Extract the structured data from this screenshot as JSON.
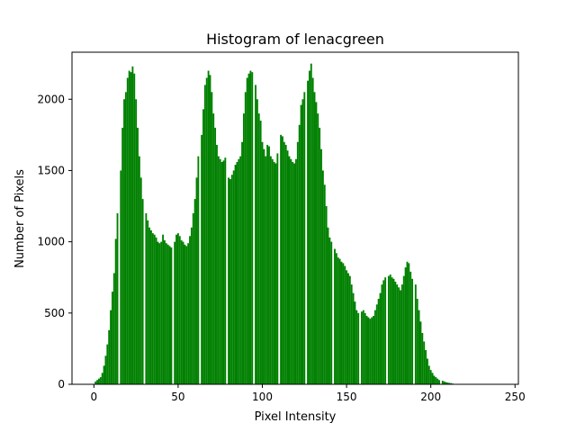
{
  "chart_data": {
    "type": "bar",
    "title": "Histogram of lenacgreen",
    "xlabel": "Pixel Intensity",
    "ylabel": "Number of Pixels",
    "xlim": [
      -13,
      252
    ],
    "ylim": [
      0,
      2330
    ],
    "xticks": [
      0,
      50,
      100,
      150,
      200,
      250
    ],
    "yticks": [
      0,
      500,
      1000,
      1500,
      2000
    ],
    "bar_color": "#008000",
    "grid": false,
    "series": [
      {
        "x_start": 0,
        "values": [
          3,
          20,
          30,
          40,
          50,
          80,
          130,
          200,
          280,
          380,
          520,
          650,
          780,
          1020,
          1200,
          0,
          1500,
          1800,
          2000,
          2050,
          2150,
          2200,
          2190,
          2230,
          2180,
          2000,
          1800,
          1600,
          1450,
          1300,
          0,
          1200,
          1150,
          1100,
          1080,
          1060,
          1050,
          1030,
          1000,
          990,
          1000,
          1050,
          1010,
          990,
          980,
          970,
          960,
          0,
          1000,
          1050,
          1060,
          1040,
          1010,
          1000,
          980,
          970,
          990,
          1040,
          1100,
          1200,
          1300,
          1450,
          1600,
          0,
          1750,
          1930,
          2100,
          2150,
          2200,
          2170,
          2050,
          1900,
          1800,
          1680,
          1600,
          1580,
          1560,
          1570,
          1590,
          0,
          1450,
          1440,
          1470,
          1500,
          1540,
          1560,
          1580,
          1600,
          1700,
          1900,
          2050,
          2150,
          2180,
          2200,
          2190,
          0,
          2100,
          2000,
          1900,
          1850,
          1700,
          1650,
          1600,
          1680,
          1670,
          1600,
          1580,
          1560,
          1550,
          1620,
          0,
          1750,
          1740,
          1700,
          1680,
          1640,
          1600,
          1580,
          1560,
          1550,
          1580,
          1700,
          1820,
          1960,
          2000,
          2050,
          0,
          2130,
          2200,
          2250,
          2150,
          2050,
          1980,
          1900,
          1800,
          1650,
          1500,
          1400,
          1250,
          1100,
          1030,
          1000,
          0,
          950,
          920,
          890,
          880,
          860,
          850,
          830,
          800,
          780,
          760,
          700,
          640,
          580,
          520,
          500,
          0,
          510,
          520,
          500,
          480,
          470,
          460,
          470,
          480,
          520,
          560,
          600,
          640,
          700,
          730,
          750,
          0,
          760,
          770,
          750,
          740,
          720,
          700,
          680,
          660,
          700,
          760,
          820,
          860,
          850,
          790,
          740,
          0,
          700,
          600,
          520,
          440,
          360,
          300,
          240,
          180,
          130,
          100,
          80,
          60,
          50,
          40,
          30,
          0,
          25,
          20,
          15,
          12,
          10,
          8,
          5,
          3,
          2,
          1,
          1,
          0,
          0,
          0,
          0
        ]
      }
    ]
  }
}
